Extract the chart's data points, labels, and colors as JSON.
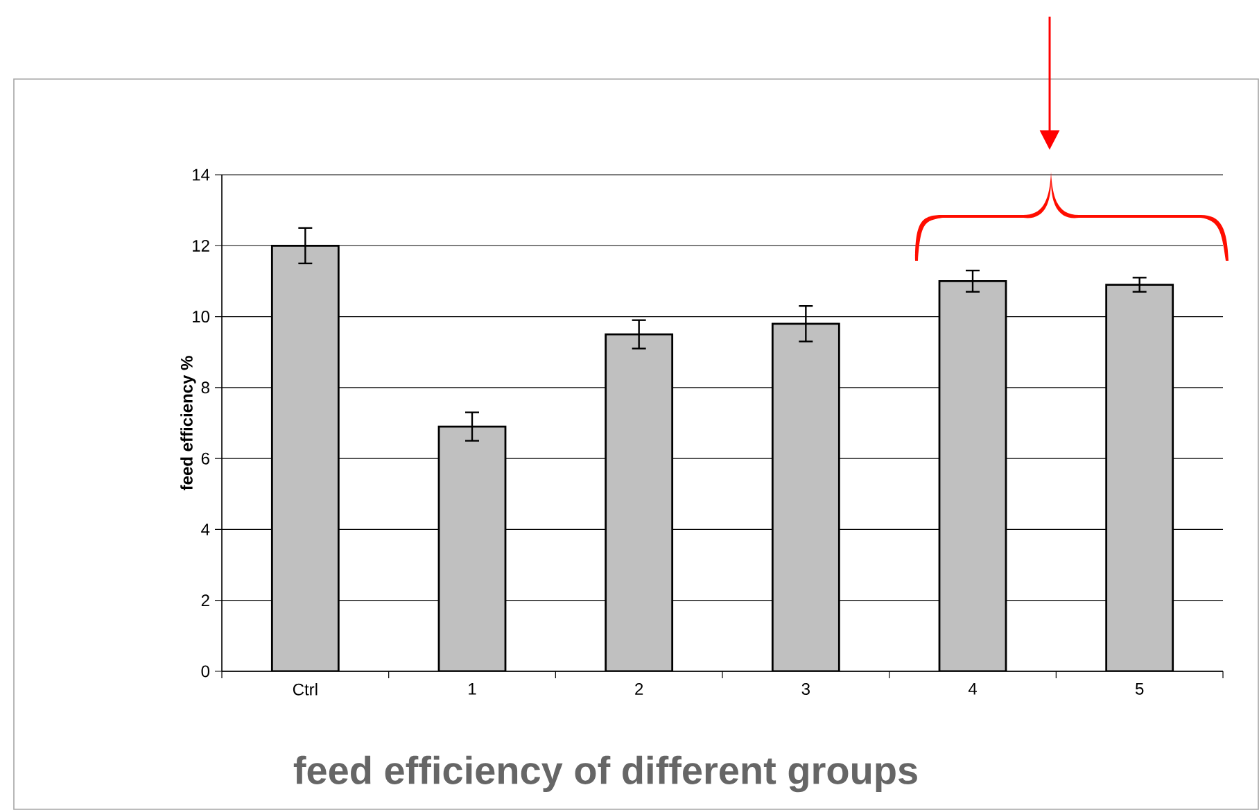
{
  "chart_data": {
    "type": "bar",
    "title": "feed efficiency of different groups",
    "ylabel": "feed efficiency %",
    "categories": [
      "Ctrl",
      "1",
      "2",
      "3",
      "4",
      "5"
    ],
    "values": [
      12.0,
      6.9,
      9.5,
      9.8,
      11.0,
      10.9
    ],
    "errors": [
      0.5,
      0.4,
      0.4,
      0.5,
      0.3,
      0.2
    ],
    "color": "#c0c0c0",
    "ylim": [
      0,
      14
    ],
    "yticks": [
      0,
      2,
      4,
      6,
      8,
      10,
      12,
      14
    ],
    "grid": "y"
  }
}
